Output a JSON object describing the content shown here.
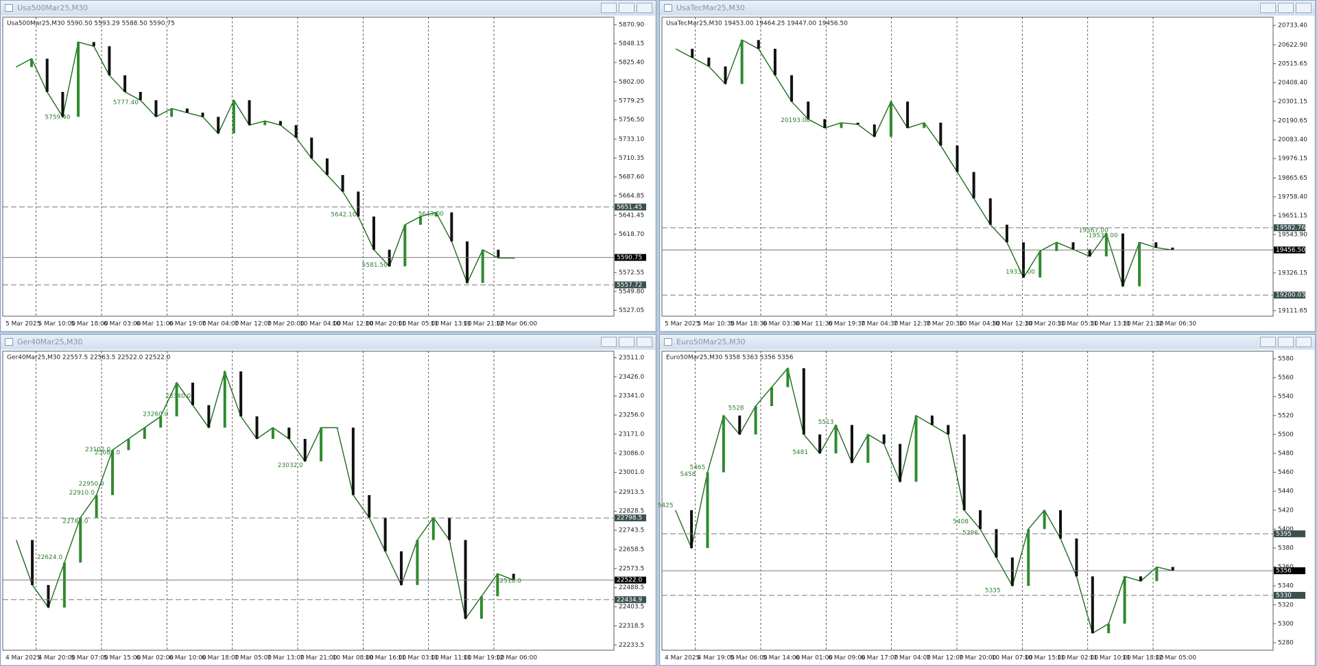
{
  "windows": [
    {
      "title": "Usa500Mar25,M30",
      "header": "Usa500Mar25,M30  5590.50 5593.29 5588.50 5590.75",
      "ylim": [
        5520,
        5880
      ],
      "yticks": [
        {
          "value": 5870.9,
          "label": "5870.90"
        },
        {
          "value": 5848.15,
          "label": "5848.15"
        },
        {
          "value": 5825.4,
          "label": "5825.40"
        },
        {
          "value": 5802,
          "label": "5802.00"
        },
        {
          "value": 5779.25,
          "label": "5779.25"
        },
        {
          "value": 5756.5,
          "label": "5756.50"
        },
        {
          "value": 5733.1,
          "label": "5733.10"
        },
        {
          "value": 5710.35,
          "label": "5710.35"
        },
        {
          "value": 5687.6,
          "label": "5687.60"
        },
        {
          "value": 5664.85,
          "label": "5664.85"
        },
        {
          "value": 5641.45,
          "label": "5641.45"
        },
        {
          "value": 5618.7,
          "label": "5618.70"
        },
        {
          "value": 5572.55,
          "label": "5572.55"
        },
        {
          "value": 5549.8,
          "label": "5549.80"
        },
        {
          "value": 5527.05,
          "label": "5527.05"
        }
      ],
      "xticks": [
        "5 Mar 2025",
        "5 Mar 10:00",
        "5 Mar 18:00",
        "6 Mar 03:00",
        "6 Mar 11:00",
        "6 Mar 19:00",
        "7 Mar 04:00",
        "7 Mar 12:00",
        "7 Mar 20:00",
        "10 Mar 04:00",
        "10 Mar 12:00",
        "10 Mar 20:00",
        "11 Mar 05:00",
        "11 Mar 13:00",
        "11 Mar 21:00",
        "12 Mar 06:00"
      ],
      "close": [
        5820,
        5830,
        5790,
        5760,
        5850,
        5845,
        5810,
        5790,
        5780,
        5760,
        5770,
        5765,
        5760,
        5740,
        5780,
        5750,
        5755,
        5750,
        5735,
        5710,
        5690,
        5670,
        5640,
        5600,
        5580,
        5630,
        5640,
        5645,
        5610,
        5560,
        5600,
        5590,
        5590
      ],
      "levels": [
        {
          "value": 5651.45,
          "label": "5651.45"
        },
        {
          "value": 5590.75,
          "label": "5590.75"
        },
        {
          "value": 5557.72,
          "label": "5557.72"
        }
      ],
      "annotations": [
        {
          "value": 5777.4,
          "label": "5777.40"
        },
        {
          "value": 5759.4,
          "label": "5759.40"
        },
        {
          "value": 5642.1,
          "label": "5642.10"
        },
        {
          "value": 5643,
          "label": "5643.00"
        },
        {
          "value": 5581.5,
          "label": "5581.50"
        }
      ]
    },
    {
      "title": "UsaTecMar25,M30",
      "header": "UsaTecMar25,M30  19453.00 19464.25 19447.00 19456.50",
      "ylim": [
        19080,
        20780
      ],
      "yticks": [
        {
          "value": 20733.4,
          "label": "20733.40"
        },
        {
          "value": 20622.9,
          "label": "20622.90"
        },
        {
          "value": 20515.65,
          "label": "20515.65"
        },
        {
          "value": 20408.4,
          "label": "20408.40"
        },
        {
          "value": 20301.15,
          "label": "20301.15"
        },
        {
          "value": 20190.65,
          "label": "20190.65"
        },
        {
          "value": 20083.4,
          "label": "20083.40"
        },
        {
          "value": 19976.15,
          "label": "19976.15"
        },
        {
          "value": 19865.65,
          "label": "19865.65"
        },
        {
          "value": 19758.4,
          "label": "19758.40"
        },
        {
          "value": 19651.15,
          "label": "19651.15"
        },
        {
          "value": 19543.9,
          "label": "19543.90"
        },
        {
          "value": 19326.15,
          "label": "19326.15"
        },
        {
          "value": 19111.65,
          "label": "19111.65"
        }
      ],
      "xticks": [
        "5 Mar 2025",
        "5 Mar 10:30",
        "5 Mar 18:30",
        "6 Mar 03:30",
        "6 Mar 11:30",
        "6 Mar 19:30",
        "7 Mar 04:30",
        "7 Mar 12:30",
        "7 Mar 20:30",
        "10 Mar 04:30",
        "10 Mar 12:30",
        "10 Mar 20:30",
        "11 Mar 05:30",
        "11 Mar 13:30",
        "11 Mar 21:30",
        "12 Mar 06:30"
      ],
      "close": [
        20600,
        20550,
        20500,
        20400,
        20650,
        20600,
        20450,
        20300,
        20200,
        20150,
        20180,
        20170,
        20100,
        20300,
        20150,
        20180,
        20050,
        19900,
        19750,
        19600,
        19500,
        19300,
        19450,
        19500,
        19460,
        19420,
        19550,
        19250,
        19500,
        19470,
        19456
      ],
      "levels": [
        {
          "value": 19582.76,
          "label": "19582.76"
        },
        {
          "value": 19456.5,
          "label": "19456.50"
        },
        {
          "value": 19200.03,
          "label": "19200.03"
        }
      ],
      "annotations": [
        {
          "value": 20193,
          "label": "20193.00"
        },
        {
          "value": 19538,
          "label": "19538.00"
        },
        {
          "value": 19567,
          "label": "19567.00"
        },
        {
          "value": 19332,
          "label": "19332.00"
        }
      ]
    },
    {
      "title": "Ger40Mar25,M30",
      "header": "Ger40Mar25,M30  22557.5 22563.5 22522.0 22522.0",
      "ylim": [
        22210,
        23540
      ],
      "yticks": [
        {
          "value": 23511,
          "label": "23511.0"
        },
        {
          "value": 23426,
          "label": "23426.0"
        },
        {
          "value": 23341,
          "label": "23341.0"
        },
        {
          "value": 23256,
          "label": "23256.0"
        },
        {
          "value": 23171,
          "label": "23171.0"
        },
        {
          "value": 23086,
          "label": "23086.0"
        },
        {
          "value": 23001,
          "label": "23001.0"
        },
        {
          "value": 22913.5,
          "label": "22913.5"
        },
        {
          "value": 22828.5,
          "label": "22828.5"
        },
        {
          "value": 22743.5,
          "label": "22743.5"
        },
        {
          "value": 22658.5,
          "label": "22658.5"
        },
        {
          "value": 22573.5,
          "label": "22573.5"
        },
        {
          "value": 22488.5,
          "label": "22488.5"
        },
        {
          "value": 22403.5,
          "label": "22403.5"
        },
        {
          "value": 22318.5,
          "label": "22318.5"
        },
        {
          "value": 22233.5,
          "label": "22233.5"
        }
      ],
      "xticks": [
        "4 Mar 2025",
        "4 Mar 20:00",
        "5 Mar 07:00",
        "5 Mar 15:00",
        "6 Mar 02:00",
        "6 Mar 10:00",
        "6 Mar 18:00",
        "7 Mar 05:00",
        "7 Mar 13:00",
        "7 Mar 21:00",
        "10 Mar 08:00",
        "10 Mar 16:00",
        "11 Mar 03:00",
        "11 Mar 11:00",
        "11 Mar 19:00",
        "12 Mar 06:00"
      ],
      "close": [
        22700,
        22500,
        22400,
        22600,
        22800,
        22900,
        23100,
        23150,
        23200,
        23250,
        23400,
        23300,
        23200,
        23450,
        23250,
        23150,
        23200,
        23150,
        23050,
        23200,
        23200,
        22900,
        22800,
        22650,
        22500,
        22700,
        22800,
        22700,
        22350,
        22450,
        22550,
        22522
      ],
      "levels": [
        {
          "value": 22798.5,
          "label": "22798.5"
        },
        {
          "value": 22522,
          "label": "22522.0"
        },
        {
          "value": 22434.9,
          "label": "22434.9"
        }
      ],
      "annotations": [
        {
          "value": 23340,
          "label": "23340.0"
        },
        {
          "value": 23260,
          "label": "23260.0"
        },
        {
          "value": 23102,
          "label": "23102.0"
        },
        {
          "value": 23089,
          "label": "23089.0"
        },
        {
          "value": 23032,
          "label": "23032.0"
        },
        {
          "value": 22950,
          "label": "22950.0"
        },
        {
          "value": 22910,
          "label": "22910.0"
        },
        {
          "value": 22783,
          "label": "22783.0"
        },
        {
          "value": 22624,
          "label": "22624.0"
        },
        {
          "value": 22518,
          "label": "22518.0"
        }
      ]
    },
    {
      "title": "Euro50Mar25,M30",
      "header": "Euro50Mar25,M30  5358 5363 5356 5356",
      "ylim": [
        5272,
        5588
      ],
      "yticks": [
        5580,
        5560,
        5540,
        5520,
        5500,
        5480,
        5460,
        5440,
        5420,
        5400,
        5380,
        5360,
        5340,
        5320,
        5300,
        5280
      ],
      "xticks": [
        "4 Mar 2025",
        "4 Mar 19:00",
        "5 Mar 06:00",
        "5 Mar 14:00",
        "6 Mar 01:00",
        "6 Mar 09:00",
        "6 Mar 17:00",
        "7 Mar 04:00",
        "7 Mar 12:00",
        "7 Mar 20:00",
        "10 Mar 07:00",
        "10 Mar 15:00",
        "11 Mar 02:00",
        "11 Mar 10:00",
        "11 Mar 18:00",
        "12 Mar 05:00"
      ],
      "close": [
        5420,
        5380,
        5460,
        5520,
        5500,
        5530,
        5550,
        5570,
        5500,
        5480,
        5510,
        5470,
        5500,
        5490,
        5450,
        5520,
        5510,
        5500,
        5420,
        5400,
        5370,
        5340,
        5400,
        5420,
        5390,
        5350,
        5290,
        5300,
        5350,
        5345,
        5360,
        5356
      ],
      "levels": [
        5395,
        5356,
        5330
      ],
      "annotations": [
        5528,
        5513,
        5481,
        5465,
        5458,
        5425,
        5408,
        5396,
        5335
      ]
    }
  ]
}
